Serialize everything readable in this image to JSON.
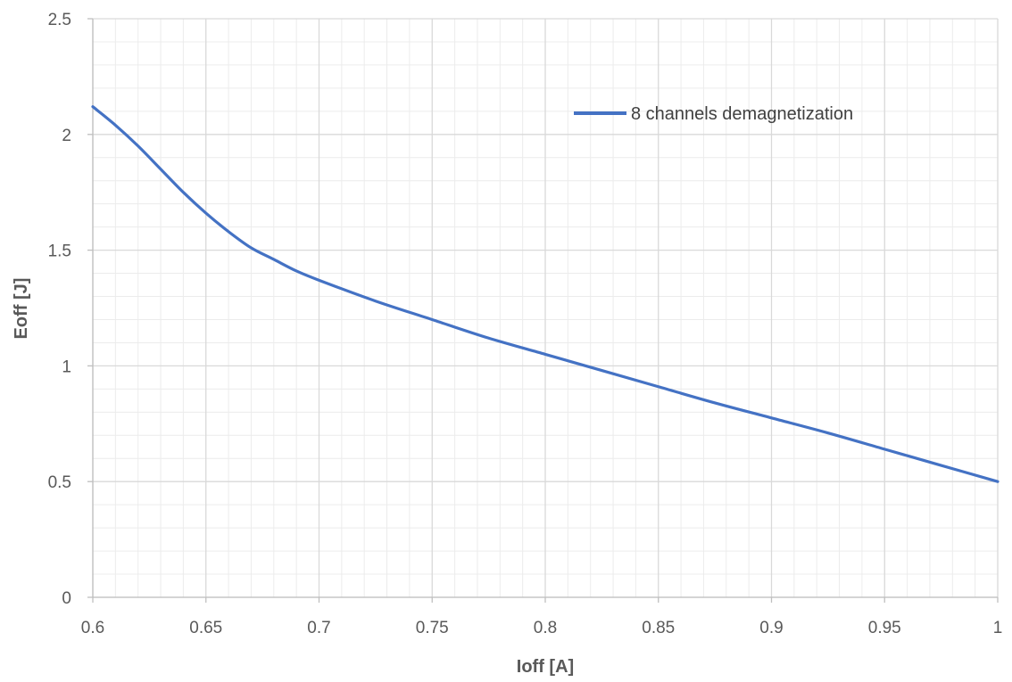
{
  "chart_data": {
    "type": "line",
    "title": "",
    "xlabel": "Ioff [A]",
    "ylabel": "Eoff [J]",
    "xlim": [
      0.6,
      1.0
    ],
    "ylim": [
      0,
      2.5
    ],
    "x_ticks": [
      "0.6",
      "0.65",
      "0.7",
      "0.75",
      "0.8",
      "0.85",
      "0.9",
      "0.95",
      "1"
    ],
    "y_ticks": [
      "0",
      "0.5",
      "1",
      "1.5",
      "2",
      "2.5"
    ],
    "grid": {
      "major": true,
      "minor": true
    },
    "legend": {
      "position": "top-right",
      "entries": [
        "8 channels demagnetization"
      ]
    },
    "series": [
      {
        "name": "8 channels demagnetization",
        "color": "#4472C4",
        "x": [
          0.6,
          0.61,
          0.62,
          0.63,
          0.64,
          0.65,
          0.66,
          0.67,
          0.68,
          0.69,
          0.7,
          0.725,
          0.75,
          0.775,
          0.8,
          0.825,
          0.85,
          0.875,
          0.9,
          0.925,
          0.95,
          0.975,
          1.0
        ],
        "y": [
          2.12,
          2.04,
          1.95,
          1.85,
          1.75,
          1.66,
          1.58,
          1.51,
          1.46,
          1.41,
          1.37,
          1.28,
          1.2,
          1.12,
          1.05,
          0.98,
          0.91,
          0.84,
          0.775,
          0.71,
          0.64,
          0.57,
          0.5
        ]
      }
    ]
  },
  "colors": {
    "major_grid": "#d9d9d9",
    "minor_grid": "#ececec",
    "axis_text": "#595959"
  }
}
